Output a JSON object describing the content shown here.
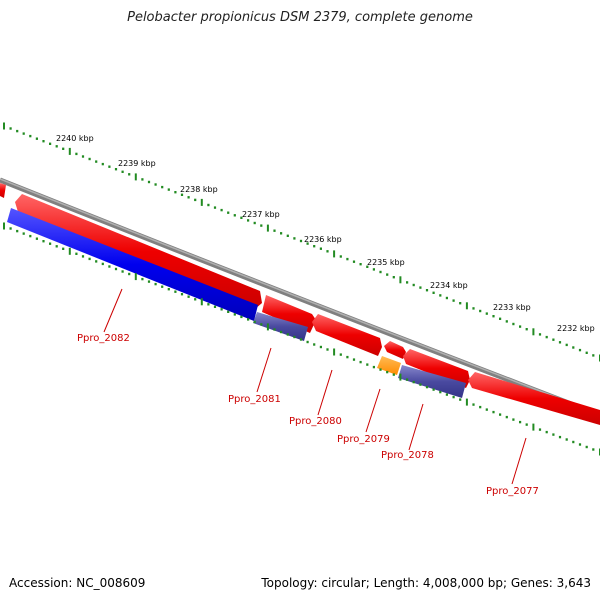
{
  "title": "Pelobacter propionicus DSM 2379, complete genome",
  "footer": {
    "accession": "Accession: NC_008609",
    "topology": "Topology: circular; Length: 4,008,000 bp; Genes: 3,643"
  },
  "kbp_labels": [
    "2240 kbp",
    "2239 kbp",
    "2238 kbp",
    "2237 kbp",
    "2236 kbp",
    "2235 kbp",
    "2234 kbp",
    "2233 kbp",
    "2232 kbp"
  ],
  "genes": [
    {
      "name": "Ppro_2082",
      "color": "#0000ee",
      "strand": "minus"
    },
    {
      "name": "Ppro_2081",
      "color": "#4a4aa0",
      "strand": "minus"
    },
    {
      "name": "Ppro_2080",
      "color": "#ee0000",
      "strand": "plus"
    },
    {
      "name": "Ppro_2079",
      "color": "#ff8c00",
      "strand": "minus"
    },
    {
      "name": "Ppro_2078",
      "color": "#4a4aa0",
      "strand": "minus"
    },
    {
      "name": "Ppro_2077",
      "color": "#ee0000",
      "strand": "plus"
    }
  ],
  "colors": {
    "backbone": "#808080",
    "ticks": "#228b22",
    "label": "#cc0000",
    "forward_gene": "#ee0000"
  }
}
